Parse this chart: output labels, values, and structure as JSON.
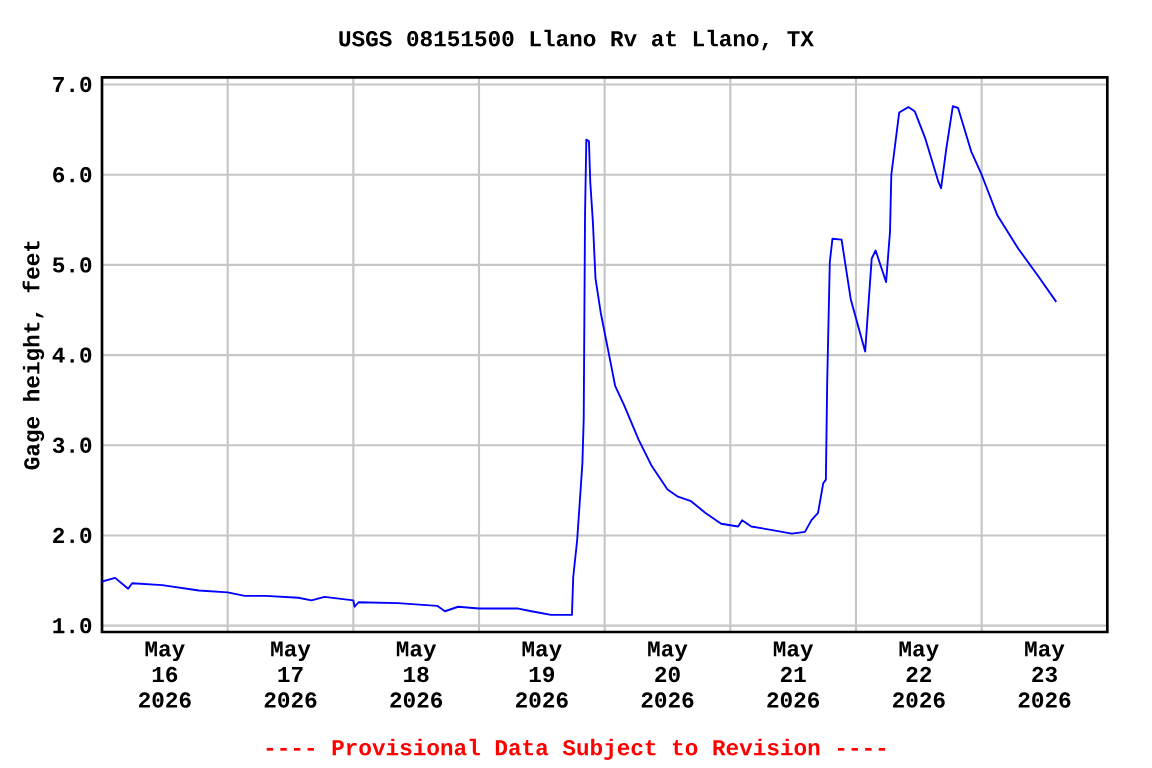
{
  "chart_data": {
    "type": "line",
    "title": "USGS 08151500 Llano Rv at Llano, TX",
    "ylabel": "Gage height, feet",
    "annotations": [
      "---- Provisional Data Subject to Revision ----"
    ],
    "grid": true,
    "color": "#0000ff",
    "xlim": [
      "2026-05-16T00:00",
      "2026-05-24T00:00"
    ],
    "ylim": [
      0.93,
      7.08
    ],
    "yticks": [
      {
        "value": 1,
        "label": "1.0"
      },
      {
        "value": 2,
        "label": "2.0"
      },
      {
        "value": 3,
        "label": "3.0"
      },
      {
        "value": 4,
        "label": "4.0"
      },
      {
        "value": 5,
        "label": "5.0"
      },
      {
        "value": 6,
        "label": "6.0"
      },
      {
        "value": 7,
        "label": "7.0"
      }
    ],
    "xticks": [
      {
        "value": "2026-05-17T00:00",
        "label": null
      },
      {
        "value": "2026-05-18T00:00",
        "label": null
      },
      {
        "value": "2026-05-19T00:00",
        "label": null
      },
      {
        "value": "2026-05-20T00:00",
        "label": null
      },
      {
        "value": "2026-05-21T00:00",
        "label": null
      },
      {
        "value": "2026-05-22T00:00",
        "label": null
      },
      {
        "value": "2026-05-23T00:00",
        "label": null
      },
      {
        "value": "2026-05-16T12:00",
        "label": "May 16 2026"
      },
      {
        "value": "2026-05-17T12:00",
        "label": "May 17 2026"
      },
      {
        "value": "2026-05-18T12:00",
        "label": "May 18 2026"
      },
      {
        "value": "2026-05-19T12:00",
        "label": "May 19 2026"
      },
      {
        "value": "2026-05-20T12:00",
        "label": "May 20 2026"
      },
      {
        "value": "2026-05-21T12:00",
        "label": "May 21 2026"
      },
      {
        "value": "2026-05-22T12:00",
        "label": "May 22 2026"
      },
      {
        "value": "2026-05-23T12:00",
        "label": "May 23 2026"
      }
    ],
    "x": [
      "2026-05-16T00:00",
      "2026-05-16T02:30",
      "2026-05-16T05:00",
      "2026-05-16T05:45",
      "2026-05-16T11:30",
      "2026-05-16T18:30",
      "2026-05-17T00:00",
      "2026-05-17T03:15",
      "2026-05-17T07:15",
      "2026-05-17T13:30",
      "2026-05-17T16:00",
      "2026-05-17T18:30",
      "2026-05-18T00:00",
      "2026-05-18T00:15",
      "2026-05-18T01:00",
      "2026-05-18T08:30",
      "2026-05-18T16:00",
      "2026-05-18T17:30",
      "2026-05-18T20:00",
      "2026-05-19T00:00",
      "2026-05-19T07:30",
      "2026-05-19T10:00",
      "2026-05-19T13:45",
      "2026-05-19T17:45",
      "2026-05-19T18:00",
      "2026-05-19T18:45",
      "2026-05-19T19:45",
      "2026-05-19T20:00",
      "2026-05-19T20:15",
      "2026-05-19T20:30",
      "2026-05-19T21:00",
      "2026-05-19T21:15",
      "2026-05-19T21:45",
      "2026-05-19T22:15",
      "2026-05-19T23:15",
      "2026-05-20T00:45",
      "2026-05-20T02:00",
      "2026-05-20T03:45",
      "2026-05-20T06:30",
      "2026-05-20T09:00",
      "2026-05-20T12:00",
      "2026-05-20T14:00",
      "2026-05-20T16:30",
      "2026-05-20T19:15",
      "2026-05-20T22:15",
      "2026-05-21T01:30",
      "2026-05-21T02:15",
      "2026-05-21T04:00",
      "2026-05-21T08:00",
      "2026-05-21T11:45",
      "2026-05-21T14:15",
      "2026-05-21T15:30",
      "2026-05-21T16:45",
      "2026-05-21T17:45",
      "2026-05-21T18:15",
      "2026-05-21T18:30",
      "2026-05-21T19:00",
      "2026-05-21T19:30",
      "2026-05-21T21:15",
      "2026-05-21T23:00",
      "2026-05-22T01:45",
      "2026-05-22T03:00",
      "2026-05-22T03:45",
      "2026-05-22T05:45",
      "2026-05-22T06:30",
      "2026-05-22T06:45",
      "2026-05-22T08:15",
      "2026-05-22T10:00",
      "2026-05-22T11:15",
      "2026-05-22T13:15",
      "2026-05-22T15:45",
      "2026-05-22T16:15",
      "2026-05-22T17:15",
      "2026-05-22T18:30",
      "2026-05-22T19:30",
      "2026-05-22T22:00",
      "2026-05-23T00:00",
      "2026-05-23T03:00",
      "2026-05-23T07:00",
      "2026-05-23T10:45",
      "2026-05-23T14:15"
    ],
    "values": [
      1.49,
      1.53,
      1.41,
      1.47,
      1.45,
      1.39,
      1.37,
      1.33,
      1.33,
      1.31,
      1.28,
      1.32,
      1.28,
      1.21,
      1.26,
      1.25,
      1.22,
      1.16,
      1.21,
      1.19,
      1.19,
      1.16,
      1.12,
      1.12,
      1.54,
      1.95,
      2.8,
      3.29,
      5.55,
      6.39,
      6.37,
      5.92,
      5.48,
      4.85,
      4.47,
      4.03,
      3.66,
      3.44,
      3.06,
      2.77,
      2.51,
      2.43,
      2.38,
      2.25,
      2.13,
      2.1,
      2.17,
      2.1,
      2.06,
      2.02,
      2.04,
      2.17,
      2.25,
      2.58,
      2.62,
      3.69,
      5.03,
      5.29,
      5.28,
      4.62,
      4.04,
      5.07,
      5.16,
      4.81,
      5.37,
      6.0,
      6.69,
      6.75,
      6.7,
      6.4,
      5.92,
      5.85,
      6.29,
      6.76,
      6.74,
      6.26,
      6.0,
      5.55,
      5.18,
      4.88,
      4.59
    ]
  }
}
